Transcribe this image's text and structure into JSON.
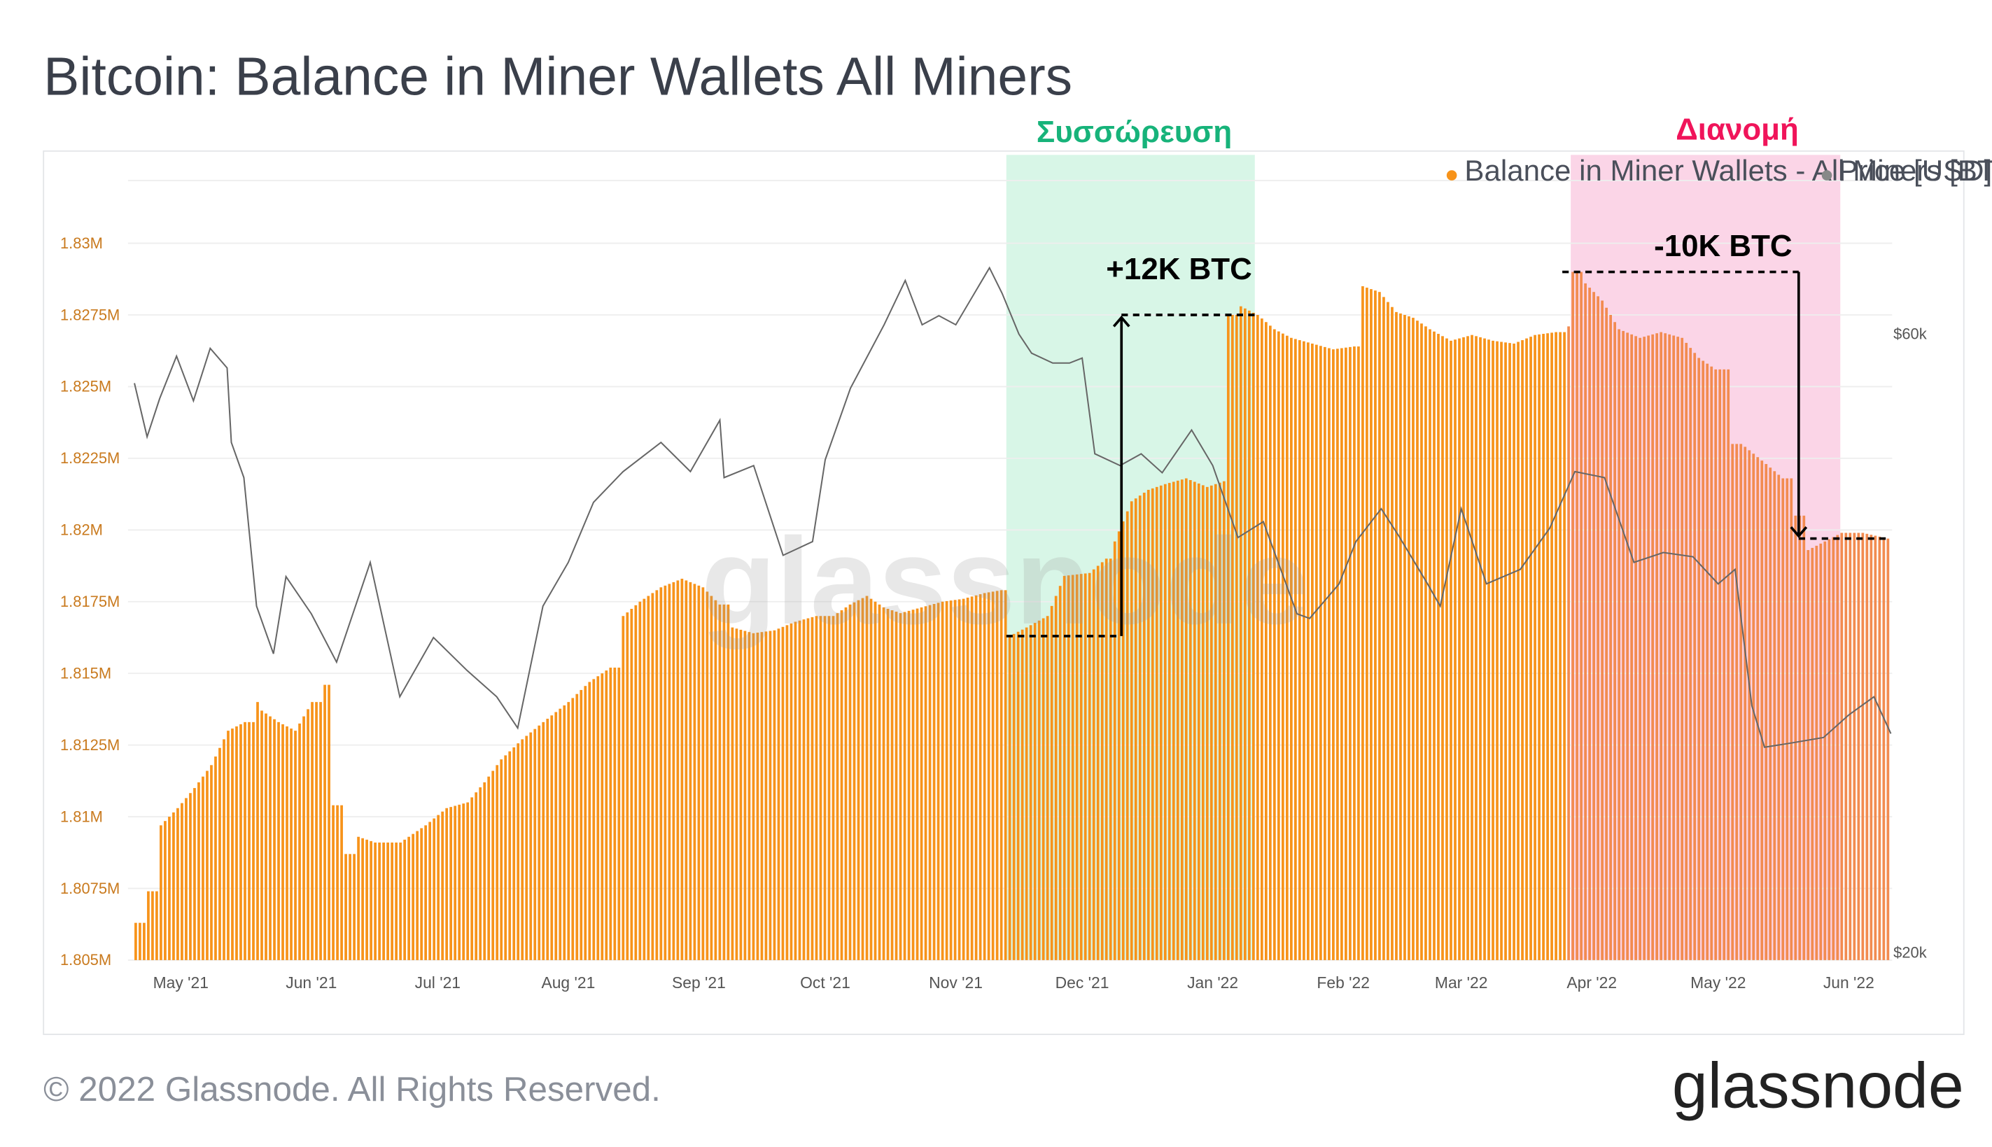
{
  "header": {
    "title": "Bitcoin: Balance in Miner Wallets All Miners"
  },
  "legend": {
    "position": "top-right",
    "items": [
      {
        "label": "Balance in Miner Wallets - All Miners [BTC]",
        "color": "#f7931a"
      },
      {
        "label": "Price [USD]",
        "color": "#888888"
      }
    ]
  },
  "annotations": {
    "accumulation": {
      "label": "Συσσώρευση",
      "color": "#17b37a",
      "fill": "#d6f5e6",
      "change_label": "+12K BTC"
    },
    "distribution": {
      "label": "Διανομή",
      "color": "#f0145a",
      "fill": "#fbd3e6",
      "change_label": "-10K BTC"
    }
  },
  "footer": {
    "copyright": "© 2022 Glassnode. All Rights Reserved.",
    "brand": "glassnode"
  },
  "watermark": "glassnode",
  "chart_data": {
    "type": "bar",
    "bar_color": "#f7931a",
    "line_color": "#666666",
    "x_tick_labels": [
      "May '21",
      "Jun '21",
      "Jul '21",
      "Aug '21",
      "Sep '21",
      "Oct '21",
      "Nov '21",
      "Dec '21",
      "Jan '22",
      "Feb '22",
      "Mar '22",
      "Apr '22",
      "May '22",
      "Jun '22"
    ],
    "y_left": {
      "label": "Balance in Miner Wallets - All Miners [BTC]",
      "ticks": [
        "1.805M",
        "1.8075M",
        "1.81M",
        "1.8125M",
        "1.815M",
        "1.8175M",
        "1.82M",
        "1.8225M",
        "1.825M",
        "1.8275M",
        "1.83M"
      ],
      "range": [
        1805000,
        1830000
      ],
      "tick_color": "#c97a1e"
    },
    "y_right": {
      "label": "Price [USD]",
      "ticks": [
        "$20k",
        "$60k"
      ],
      "range": [
        20000,
        60000
      ],
      "scale": "log"
    },
    "x_range": [
      "2021-04-20",
      "2022-06-11"
    ],
    "accumulation_period": [
      "2021-11-13",
      "2022-01-11"
    ],
    "distribution_period": [
      "2022-03-27",
      "2022-05-30"
    ],
    "balance_series": [
      {
        "date": "2021-04-20",
        "value": 1806300
      },
      {
        "date": "2021-04-23",
        "value": 1807400
      },
      {
        "date": "2021-04-26",
        "value": 1809700
      },
      {
        "date": "2021-04-30",
        "value": 1810300
      },
      {
        "date": "2021-05-04",
        "value": 1811000
      },
      {
        "date": "2021-05-08",
        "value": 1811800
      },
      {
        "date": "2021-05-12",
        "value": 1813000
      },
      {
        "date": "2021-05-16",
        "value": 1813300
      },
      {
        "date": "2021-05-19",
        "value": 1814000
      },
      {
        "date": "2021-05-20",
        "value": 1813700
      },
      {
        "date": "2021-05-24",
        "value": 1813300
      },
      {
        "date": "2021-05-28",
        "value": 1813000
      },
      {
        "date": "2021-06-01",
        "value": 1814000
      },
      {
        "date": "2021-06-04",
        "value": 1814600
      },
      {
        "date": "2021-06-06",
        "value": 1810400
      },
      {
        "date": "2021-06-09",
        "value": 1808700
      },
      {
        "date": "2021-06-12",
        "value": 1809300
      },
      {
        "date": "2021-06-16",
        "value": 1809100
      },
      {
        "date": "2021-06-22",
        "value": 1809100
      },
      {
        "date": "2021-06-28",
        "value": 1809700
      },
      {
        "date": "2021-07-03",
        "value": 1810300
      },
      {
        "date": "2021-07-08",
        "value": 1810500
      },
      {
        "date": "2021-07-12",
        "value": 1811200
      },
      {
        "date": "2021-07-16",
        "value": 1812000
      },
      {
        "date": "2021-07-21",
        "value": 1812700
      },
      {
        "date": "2021-07-26",
        "value": 1813300
      },
      {
        "date": "2021-08-01",
        "value": 1814000
      },
      {
        "date": "2021-08-06",
        "value": 1814700
      },
      {
        "date": "2021-08-11",
        "value": 1815200
      },
      {
        "date": "2021-08-14",
        "value": 1817000
      },
      {
        "date": "2021-08-18",
        "value": 1817500
      },
      {
        "date": "2021-08-23",
        "value": 1818000
      },
      {
        "date": "2021-08-28",
        "value": 1818300
      },
      {
        "date": "2021-09-02",
        "value": 1818000
      },
      {
        "date": "2021-09-06",
        "value": 1817400
      },
      {
        "date": "2021-09-09",
        "value": 1816600
      },
      {
        "date": "2021-09-14",
        "value": 1816400
      },
      {
        "date": "2021-09-19",
        "value": 1816500
      },
      {
        "date": "2021-09-24",
        "value": 1816800
      },
      {
        "date": "2021-09-29",
        "value": 1817000
      },
      {
        "date": "2021-10-03",
        "value": 1817000
      },
      {
        "date": "2021-10-07",
        "value": 1817400
      },
      {
        "date": "2021-10-11",
        "value": 1817700
      },
      {
        "date": "2021-10-15",
        "value": 1817300
      },
      {
        "date": "2021-10-19",
        "value": 1817100
      },
      {
        "date": "2021-10-24",
        "value": 1817300
      },
      {
        "date": "2021-10-29",
        "value": 1817500
      },
      {
        "date": "2021-11-03",
        "value": 1817600
      },
      {
        "date": "2021-11-08",
        "value": 1817800
      },
      {
        "date": "2021-11-12",
        "value": 1817900
      },
      {
        "date": "2021-11-14",
        "value": 1816300
      },
      {
        "date": "2021-11-18",
        "value": 1816600
      },
      {
        "date": "2021-11-23",
        "value": 1817000
      },
      {
        "date": "2021-11-27",
        "value": 1818400
      },
      {
        "date": "2021-12-03",
        "value": 1818500
      },
      {
        "date": "2021-12-07",
        "value": 1819000
      },
      {
        "date": "2021-12-09",
        "value": 1819600
      },
      {
        "date": "2021-12-13",
        "value": 1821000
      },
      {
        "date": "2021-12-17",
        "value": 1821400
      },
      {
        "date": "2021-12-21",
        "value": 1821600
      },
      {
        "date": "2021-12-26",
        "value": 1821800
      },
      {
        "date": "2021-12-31",
        "value": 1821500
      },
      {
        "date": "2022-01-04",
        "value": 1821700
      },
      {
        "date": "2022-01-05",
        "value": 1827500
      },
      {
        "date": "2022-01-08",
        "value": 1827800
      },
      {
        "date": "2022-01-12",
        "value": 1827500
      },
      {
        "date": "2022-01-16",
        "value": 1827000
      },
      {
        "date": "2022-01-20",
        "value": 1826700
      },
      {
        "date": "2022-01-25",
        "value": 1826500
      },
      {
        "date": "2022-01-30",
        "value": 1826300
      },
      {
        "date": "2022-02-04",
        "value": 1826400
      },
      {
        "date": "2022-02-06",
        "value": 1828500
      },
      {
        "date": "2022-02-10",
        "value": 1828300
      },
      {
        "date": "2022-02-14",
        "value": 1827600
      },
      {
        "date": "2022-02-18",
        "value": 1827400
      },
      {
        "date": "2022-02-22",
        "value": 1827000
      },
      {
        "date": "2022-02-27",
        "value": 1826600
      },
      {
        "date": "2022-03-04",
        "value": 1826800
      },
      {
        "date": "2022-03-09",
        "value": 1826600
      },
      {
        "date": "2022-03-14",
        "value": 1826500
      },
      {
        "date": "2022-03-19",
        "value": 1826800
      },
      {
        "date": "2022-03-24",
        "value": 1826900
      },
      {
        "date": "2022-03-27",
        "value": 1827100
      },
      {
        "date": "2022-03-28",
        "value": 1829000
      },
      {
        "date": "2022-03-31",
        "value": 1828600
      },
      {
        "date": "2022-04-04",
        "value": 1828000
      },
      {
        "date": "2022-04-08",
        "value": 1827000
      },
      {
        "date": "2022-04-13",
        "value": 1826700
      },
      {
        "date": "2022-04-18",
        "value": 1826900
      },
      {
        "date": "2022-04-23",
        "value": 1826700
      },
      {
        "date": "2022-04-27",
        "value": 1826000
      },
      {
        "date": "2022-05-01",
        "value": 1825600
      },
      {
        "date": "2022-05-05",
        "value": 1823000
      },
      {
        "date": "2022-05-08",
        "value": 1822900
      },
      {
        "date": "2022-05-13",
        "value": 1822300
      },
      {
        "date": "2022-05-17",
        "value": 1821800
      },
      {
        "date": "2022-05-20",
        "value": 1820500
      },
      {
        "date": "2022-05-23",
        "value": 1819300
      },
      {
        "date": "2022-05-27",
        "value": 1819600
      },
      {
        "date": "2022-05-31",
        "value": 1819900
      },
      {
        "date": "2022-06-05",
        "value": 1819900
      },
      {
        "date": "2022-06-11",
        "value": 1819700
      }
    ],
    "price_series": [
      {
        "date": "2021-04-20",
        "value": 55000
      },
      {
        "date": "2021-04-23",
        "value": 50000
      },
      {
        "date": "2021-04-26",
        "value": 53500
      },
      {
        "date": "2021-04-30",
        "value": 57700
      },
      {
        "date": "2021-05-04",
        "value": 53300
      },
      {
        "date": "2021-05-08",
        "value": 58500
      },
      {
        "date": "2021-05-12",
        "value": 56500
      },
      {
        "date": "2021-05-13",
        "value": 49500
      },
      {
        "date": "2021-05-16",
        "value": 46500
      },
      {
        "date": "2021-05-19",
        "value": 37000
      },
      {
        "date": "2021-05-23",
        "value": 34000
      },
      {
        "date": "2021-05-26",
        "value": 39000
      },
      {
        "date": "2021-06-01",
        "value": 36500
      },
      {
        "date": "2021-06-07",
        "value": 33500
      },
      {
        "date": "2021-06-15",
        "value": 40000
      },
      {
        "date": "2021-06-22",
        "value": 31500
      },
      {
        "date": "2021-06-30",
        "value": 35000
      },
      {
        "date": "2021-07-08",
        "value": 33000
      },
      {
        "date": "2021-07-15",
        "value": 31500
      },
      {
        "date": "2021-07-20",
        "value": 29800
      },
      {
        "date": "2021-07-26",
        "value": 37000
      },
      {
        "date": "2021-08-01",
        "value": 40000
      },
      {
        "date": "2021-08-07",
        "value": 44500
      },
      {
        "date": "2021-08-14",
        "value": 47000
      },
      {
        "date": "2021-08-23",
        "value": 49500
      },
      {
        "date": "2021-08-30",
        "value": 47000
      },
      {
        "date": "2021-09-06",
        "value": 51500
      },
      {
        "date": "2021-09-07",
        "value": 46500
      },
      {
        "date": "2021-09-14",
        "value": 47500
      },
      {
        "date": "2021-09-21",
        "value": 40500
      },
      {
        "date": "2021-09-28",
        "value": 41500
      },
      {
        "date": "2021-10-01",
        "value": 48000
      },
      {
        "date": "2021-10-07",
        "value": 54500
      },
      {
        "date": "2021-10-15",
        "value": 61000
      },
      {
        "date": "2021-10-20",
        "value": 66000
      },
      {
        "date": "2021-10-24",
        "value": 61000
      },
      {
        "date": "2021-10-28",
        "value": 62000
      },
      {
        "date": "2021-11-01",
        "value": 61000
      },
      {
        "date": "2021-11-09",
        "value": 67500
      },
      {
        "date": "2021-11-12",
        "value": 64500
      },
      {
        "date": "2021-11-16",
        "value": 60000
      },
      {
        "date": "2021-11-19",
        "value": 58000
      },
      {
        "date": "2021-11-24",
        "value": 57000
      },
      {
        "date": "2021-11-28",
        "value": 57000
      },
      {
        "date": "2021-12-01",
        "value": 57500
      },
      {
        "date": "2021-12-04",
        "value": 48500
      },
      {
        "date": "2021-12-10",
        "value": 47500
      },
      {
        "date": "2021-12-15",
        "value": 48500
      },
      {
        "date": "2021-12-20",
        "value": 46900
      },
      {
        "date": "2021-12-27",
        "value": 50600
      },
      {
        "date": "2022-01-01",
        "value": 47500
      },
      {
        "date": "2022-01-07",
        "value": 41800
      },
      {
        "date": "2022-01-13",
        "value": 43000
      },
      {
        "date": "2022-01-21",
        "value": 36500
      },
      {
        "date": "2022-01-24",
        "value": 36200
      },
      {
        "date": "2022-01-31",
        "value": 38500
      },
      {
        "date": "2022-02-04",
        "value": 41500
      },
      {
        "date": "2022-02-10",
        "value": 44000
      },
      {
        "date": "2022-02-14",
        "value": 42000
      },
      {
        "date": "2022-02-21",
        "value": 38500
      },
      {
        "date": "2022-02-24",
        "value": 37000
      },
      {
        "date": "2022-03-01",
        "value": 44000
      },
      {
        "date": "2022-03-07",
        "value": 38500
      },
      {
        "date": "2022-03-15",
        "value": 39500
      },
      {
        "date": "2022-03-22",
        "value": 42500
      },
      {
        "date": "2022-03-28",
        "value": 47000
      },
      {
        "date": "2022-04-04",
        "value": 46500
      },
      {
        "date": "2022-04-11",
        "value": 40000
      },
      {
        "date": "2022-04-18",
        "value": 40700
      },
      {
        "date": "2022-04-25",
        "value": 40400
      },
      {
        "date": "2022-05-01",
        "value": 38500
      },
      {
        "date": "2022-05-05",
        "value": 39500
      },
      {
        "date": "2022-05-09",
        "value": 31000
      },
      {
        "date": "2022-05-12",
        "value": 28800
      },
      {
        "date": "2022-05-18",
        "value": 29000
      },
      {
        "date": "2022-05-26",
        "value": 29300
      },
      {
        "date": "2022-06-01",
        "value": 30500
      },
      {
        "date": "2022-06-07",
        "value": 31500
      },
      {
        "date": "2022-06-11",
        "value": 29500
      }
    ]
  }
}
